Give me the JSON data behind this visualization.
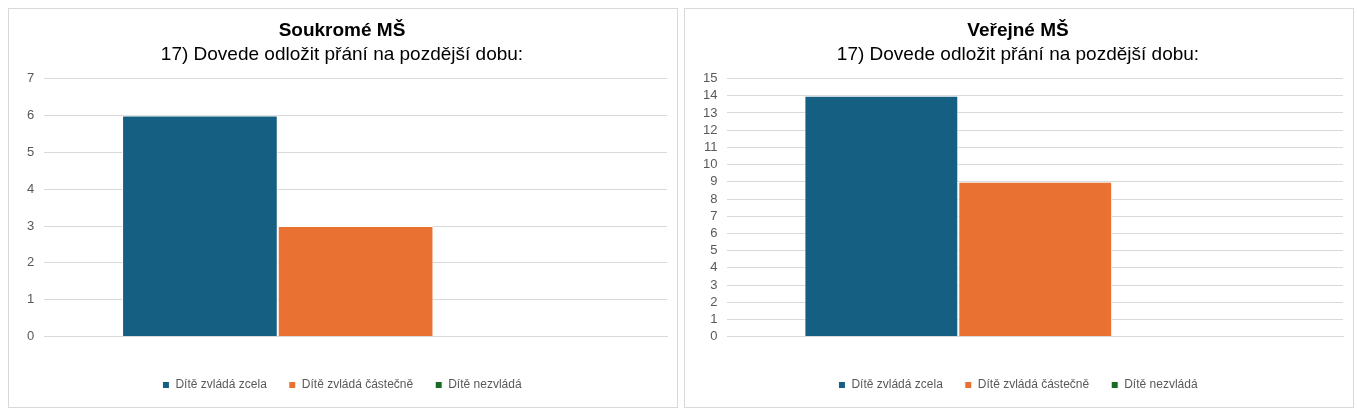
{
  "chart_data": [
    {
      "type": "bar",
      "title": "Soukromé MŠ",
      "subtitle": "17) Dovede odložit přání na pozdější dobu:",
      "categories": [
        null
      ],
      "series": [
        {
          "name": "Dítě zvládá zcela",
          "color": "#156082",
          "values": [
            6
          ]
        },
        {
          "name": "Dítě zvládá částečně",
          "color": "#e97132",
          "values": [
            3
          ]
        },
        {
          "name": "Dítě nezvládá",
          "color": "#196b24",
          "values": [
            0
          ]
        }
      ],
      "ylim": [
        0,
        7
      ],
      "yticks": [
        0,
        1,
        2,
        3,
        4,
        5,
        6,
        7
      ],
      "grid": "y",
      "legend": "bottom"
    },
    {
      "type": "bar",
      "title": "Veřejné MŠ",
      "subtitle": "17) Dovede odložit přání na pozdější dobu:",
      "categories": [
        null
      ],
      "series": [
        {
          "name": "Dítě zvládá zcela",
          "color": "#156082",
          "values": [
            14
          ]
        },
        {
          "name": "Dítě zvládá částečně",
          "color": "#e97132",
          "values": [
            9
          ]
        },
        {
          "name": "Dítě nezvládá",
          "color": "#196b24",
          "values": [
            0
          ]
        }
      ],
      "ylim": [
        0,
        15
      ],
      "yticks": [
        0,
        1,
        2,
        3,
        4,
        5,
        6,
        7,
        8,
        9,
        10,
        11,
        12,
        13,
        14,
        15
      ],
      "grid": "y",
      "legend": "bottom"
    }
  ]
}
